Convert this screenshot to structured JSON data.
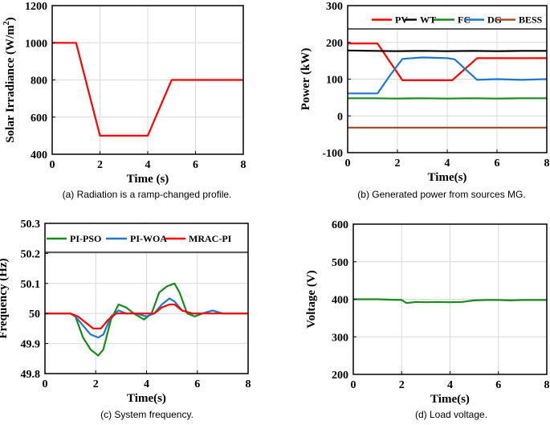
{
  "chart_data": [
    {
      "id": "a",
      "type": "line",
      "caption": "(a) Radiation is a ramp-changed profile.",
      "xlabel": "Time (s)",
      "ylabel_main": "Solar Irradiance (W/m",
      "ylabel_sup": "2",
      "ylabel_close": ")",
      "xlim": [
        0,
        8
      ],
      "ylim": [
        400,
        1200
      ],
      "xticks": [
        "0",
        "2",
        "4",
        "6",
        "8"
      ],
      "yticks": [
        "400",
        "600",
        "800",
        "1000",
        "1200"
      ],
      "xtick_values": [
        0,
        2,
        4,
        6,
        8
      ],
      "ytick_values": [
        400,
        600,
        800,
        1000,
        1200
      ],
      "grid": true,
      "series": [
        {
          "name": "Solar Irradiance",
          "color": "#ff0000",
          "x": [
            0,
            1,
            2,
            4,
            5,
            8
          ],
          "y": [
            1000,
            1000,
            500,
            500,
            800,
            800
          ]
        }
      ]
    },
    {
      "id": "b",
      "type": "line",
      "caption": "(b) Generated power from sources MG.",
      "xlabel": "Time(s)",
      "ylabel": "Power (kW)",
      "xlim": [
        0,
        8
      ],
      "ylim": [
        -100,
        300
      ],
      "xticks": [
        "0",
        "2",
        "4",
        "6",
        "8"
      ],
      "yticks": [
        "-100",
        "0",
        "100",
        "200",
        "300"
      ],
      "xtick_values": [
        0,
        2,
        4,
        6,
        8
      ],
      "ytick_values": [
        -100,
        0,
        100,
        200,
        300
      ],
      "grid": true,
      "legend_position": "top",
      "series": [
        {
          "name": "PV",
          "color": "#ff0000",
          "x": [
            0,
            1.2,
            2.2,
            4.2,
            5.2,
            8
          ],
          "y": [
            197,
            197,
            97,
            97,
            157,
            157
          ]
        },
        {
          "name": "WT",
          "color": "#000000",
          "x": [
            0,
            1,
            2,
            3,
            4,
            5,
            6,
            7,
            8
          ],
          "y": [
            178,
            177,
            176,
            177,
            176,
            177,
            176,
            177,
            177
          ]
        },
        {
          "name": "FC",
          "color": "#1a8a1a",
          "x": [
            0,
            1,
            2,
            3,
            4,
            5,
            6,
            7,
            8
          ],
          "y": [
            48,
            48,
            47,
            48,
            47,
            48,
            47,
            48,
            48
          ]
        },
        {
          "name": "DG",
          "color": "#1f77c8",
          "x": [
            0,
            1.2,
            1.7,
            2.2,
            3,
            4,
            4.3,
            5.2,
            6,
            7,
            8
          ],
          "y": [
            61,
            61,
            110,
            155,
            159,
            157,
            154,
            98,
            100,
            98,
            100
          ]
        },
        {
          "name": "BESS",
          "color": "#a0522d",
          "x": [
            0,
            8
          ],
          "y": [
            -32,
            -32
          ]
        }
      ]
    },
    {
      "id": "c",
      "type": "line",
      "caption": "(c) System frequency.",
      "xlabel": "Time(s)",
      "ylabel": "Frequency (Hz)",
      "xlim": [
        0,
        8
      ],
      "ylim": [
        49.8,
        50.3
      ],
      "xticks": [
        "0",
        "2",
        "4",
        "6",
        "8"
      ],
      "yticks": [
        "49.8",
        "49.9",
        "50",
        "50.1",
        "50.2",
        "50.3"
      ],
      "xtick_values": [
        0,
        2,
        4,
        6,
        8
      ],
      "ytick_values": [
        49.8,
        49.9,
        50,
        50.1,
        50.2,
        50.3
      ],
      "grid": true,
      "legend_position": "top",
      "series": [
        {
          "name": "PI-PSO",
          "color": "#1a8a1a",
          "x": [
            0,
            1,
            1.2,
            1.5,
            1.8,
            2.1,
            2.3,
            2.6,
            2.9,
            3.2,
            3.5,
            3.9,
            4.2,
            4.5,
            4.8,
            5.1,
            5.3,
            5.6,
            5.9,
            6.2,
            6.6,
            7,
            8
          ],
          "y": [
            50,
            50,
            49.99,
            49.92,
            49.88,
            49.86,
            49.88,
            49.98,
            50.03,
            50.02,
            50.0,
            49.98,
            50.0,
            50.07,
            50.09,
            50.1,
            50.07,
            50.0,
            49.99,
            50.0,
            50.01,
            50.0,
            50
          ]
        },
        {
          "name": "PI-WOA",
          "color": "#1f77c8",
          "x": [
            0,
            1,
            1.2,
            1.5,
            1.8,
            2.1,
            2.3,
            2.6,
            2.9,
            3.2,
            3.6,
            4,
            4.3,
            4.6,
            4.9,
            5.1,
            5.4,
            5.8,
            6.2,
            6.6,
            7,
            8
          ],
          "y": [
            50,
            50,
            49.99,
            49.96,
            49.93,
            49.92,
            49.93,
            49.99,
            50.01,
            50.0,
            50.0,
            49.99,
            50.0,
            50.03,
            50.05,
            50.04,
            50.01,
            50.0,
            50.0,
            50.01,
            50.0,
            50
          ]
        },
        {
          "name": "MRAC-PI",
          "color": "#ff0000",
          "x": [
            0,
            1,
            1.3,
            1.6,
            1.9,
            2.2,
            2.5,
            2.8,
            3.2,
            3.6,
            4,
            4.3,
            4.6,
            4.9,
            5.1,
            5.4,
            5.8,
            6.2,
            7,
            8
          ],
          "y": [
            50,
            50,
            49.99,
            49.97,
            49.95,
            49.95,
            49.98,
            50.0,
            50.0,
            50.0,
            50.0,
            50.0,
            50.02,
            50.03,
            50.03,
            50.01,
            50.0,
            50.0,
            50.0,
            50
          ]
        }
      ]
    },
    {
      "id": "d",
      "type": "line",
      "caption": "(d) Load voltage.",
      "xlabel": "Time(s)",
      "ylabel": "Voltage (V)",
      "xlim": [
        0,
        8
      ],
      "ylim": [
        200,
        600
      ],
      "xticks": [
        "0",
        "2",
        "4",
        "6",
        "8"
      ],
      "yticks": [
        "200",
        "300",
        "400",
        "500",
        "600"
      ],
      "xtick_values": [
        0,
        2,
        4,
        6,
        8
      ],
      "ytick_values": [
        200,
        300,
        400,
        500,
        600
      ],
      "grid": true,
      "series": [
        {
          "name": "Load voltage",
          "color": "#1a8a1a",
          "x": [
            0,
            1,
            1.5,
            2,
            2.2,
            2.6,
            3,
            3.5,
            4,
            4.5,
            5,
            5.5,
            6,
            6.5,
            7,
            7.5,
            8
          ],
          "y": [
            400,
            400,
            399,
            398,
            390,
            393,
            392,
            393,
            392,
            393,
            397,
            398,
            398,
            397,
            398,
            398,
            398
          ]
        }
      ]
    }
  ]
}
